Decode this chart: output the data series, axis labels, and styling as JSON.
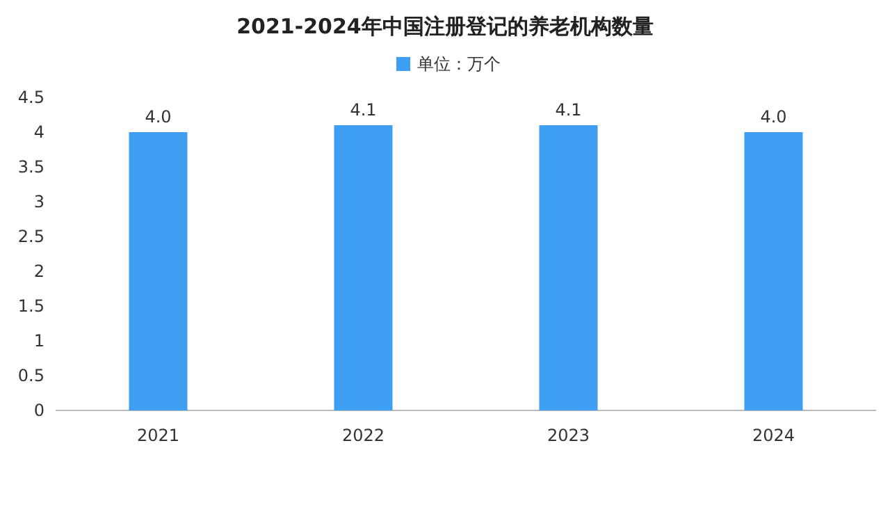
{
  "chart_data": {
    "type": "bar",
    "title": "2021-2024年中国注册登记的养老机构数量",
    "categories": [
      "2021",
      "2022",
      "2023",
      "2024"
    ],
    "series": [
      {
        "name": "单位：万个",
        "color": "#3d9ef2",
        "values": [
          4.0,
          4.1,
          4.1,
          4.0
        ],
        "value_labels": [
          "4.0",
          "4.1",
          "4.1",
          "4.0"
        ]
      }
    ],
    "ylim": [
      0,
      4.5
    ],
    "yticks": [
      0,
      0.5,
      1,
      1.5,
      2,
      2.5,
      3,
      3.5,
      4,
      4.5
    ],
    "legend": "top"
  }
}
